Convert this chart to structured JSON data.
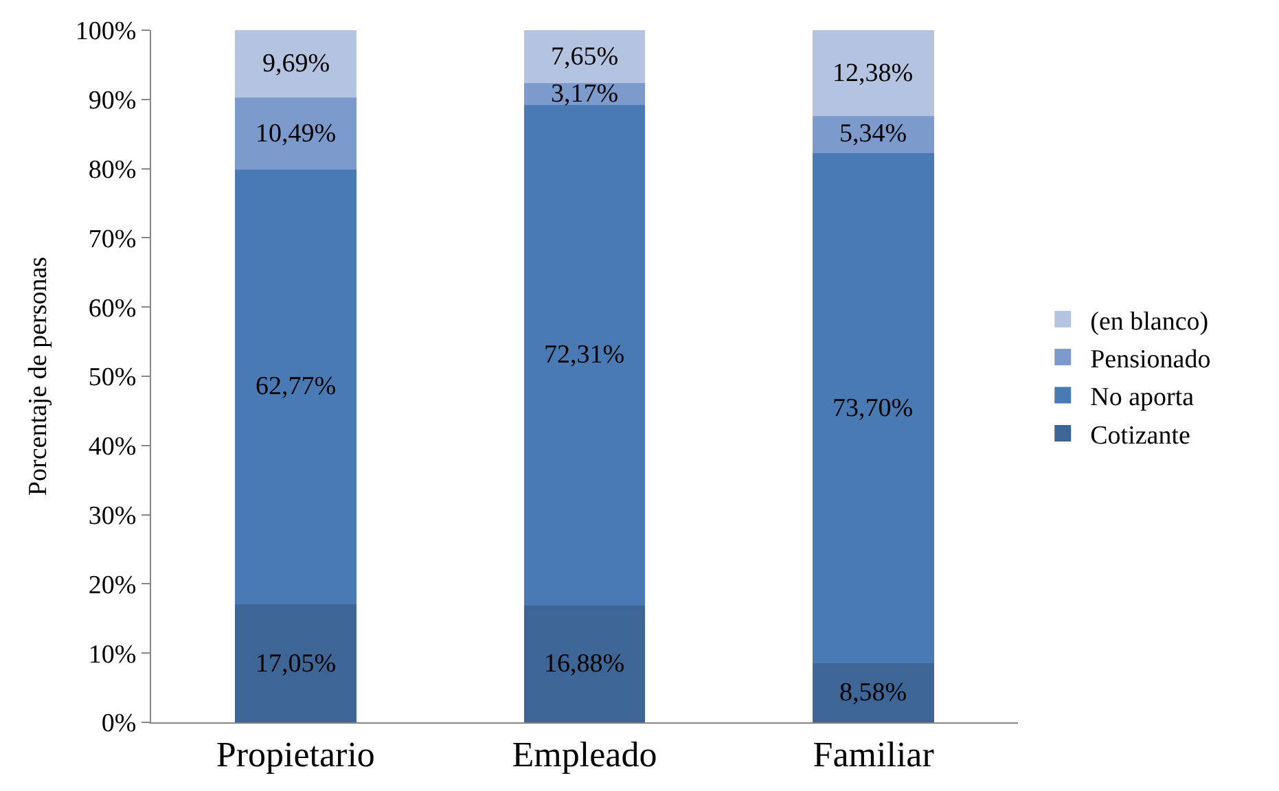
{
  "chart_data": {
    "type": "bar",
    "stacked": true,
    "ylabel": "Porcentaje de personas",
    "categories": [
      "Propietario",
      "Empleado",
      "Familiar"
    ],
    "series": [
      {
        "name": "Cotizante",
        "color": "#3d6595",
        "values": [
          17.05,
          16.88,
          8.58
        ],
        "value_labels": [
          "17,05%",
          "16,88%",
          "8,58%"
        ]
      },
      {
        "name": "No aporta",
        "color": "#4a7ab4",
        "values": [
          62.77,
          72.31,
          73.7
        ],
        "value_labels": [
          "62,77%",
          "72,31%",
          "73,70%"
        ]
      },
      {
        "name": "Pensionado",
        "color": "#7c9acb",
        "values": [
          10.49,
          3.17,
          5.34
        ],
        "value_labels": [
          "10,49%",
          "3,17%",
          "5,34%"
        ]
      },
      {
        "name": "(en blanco)",
        "color": "#b3c3e0",
        "values": [
          9.69,
          7.65,
          12.38
        ],
        "value_labels": [
          "9,69%",
          "7,65%",
          "12,38%"
        ]
      }
    ],
    "ylim": [
      0,
      100
    ],
    "yticks": [
      {
        "value": 0,
        "label": "0%"
      },
      {
        "value": 10,
        "label": "10%"
      },
      {
        "value": 20,
        "label": "20%"
      },
      {
        "value": 30,
        "label": "30%"
      },
      {
        "value": 40,
        "label": "40%"
      },
      {
        "value": 50,
        "label": "50%"
      },
      {
        "value": 60,
        "label": "60%"
      },
      {
        "value": 70,
        "label": "70%"
      },
      {
        "value": 80,
        "label": "80%"
      },
      {
        "value": 90,
        "label": "90%"
      },
      {
        "value": 100,
        "label": "100%"
      }
    ],
    "grid": false,
    "legend": "right"
  }
}
